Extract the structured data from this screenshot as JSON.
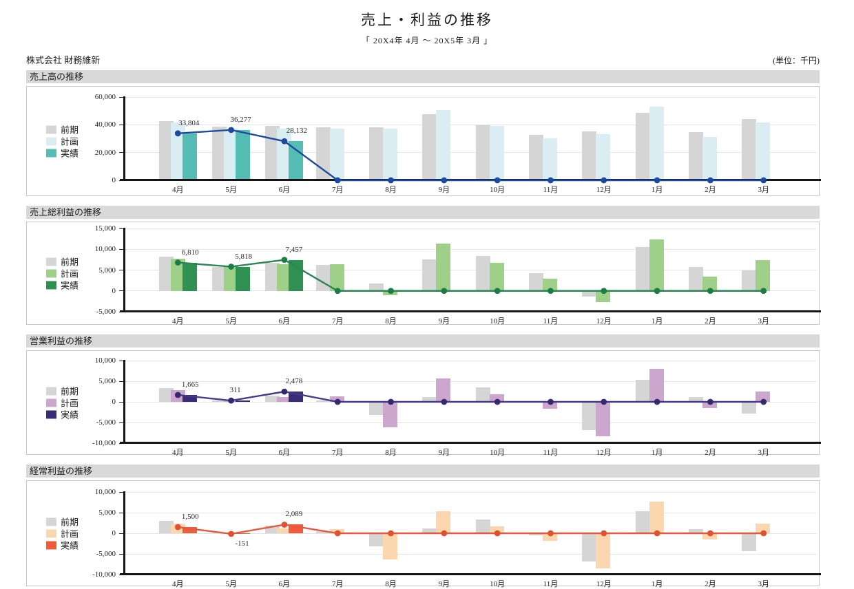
{
  "page": {
    "title": "売上・利益の推移",
    "subtitle": "「 20X4年 4月 ～ 20X5年 3月 」",
    "company": "株式会社 財務維新",
    "unit": "(単位：千円)"
  },
  "months": [
    "4月",
    "5月",
    "6月",
    "7月",
    "8月",
    "9月",
    "10月",
    "11月",
    "12月",
    "1月",
    "2月",
    "3月"
  ],
  "chart_data": [
    {
      "type": "bar+line",
      "title": "売上高の推移",
      "legend": [
        "前期",
        "計画",
        "実績"
      ],
      "colors": {
        "bars": [
          "#d5d5d5",
          "#daedf2",
          "#56bdb4"
        ],
        "line": "#1d4a9e",
        "dot": "#1d4a9e"
      },
      "ylim": [
        0,
        60000
      ],
      "ytick_step": 20000,
      "series": [
        {
          "name": "前期",
          "values": [
            42500,
            38600,
            39100,
            38300,
            38400,
            47800,
            39900,
            32600,
            35400,
            48600,
            34700,
            44200
          ]
        },
        {
          "name": "計画",
          "values": [
            41500,
            37000,
            37400,
            37400,
            37200,
            50800,
            39400,
            30300,
            33400,
            53300,
            31300,
            41500
          ]
        },
        {
          "name": "実績",
          "values": [
            33804,
            36277,
            28132,
            null,
            null,
            null,
            null,
            null,
            null,
            null,
            null,
            null
          ]
        }
      ],
      "line_values": [
        33804,
        36277,
        28132,
        0,
        0,
        0,
        0,
        0,
        0,
        0,
        0,
        0
      ],
      "point_labels": [
        {
          "i": 0,
          "text": "33,804",
          "dx": 16,
          "below": false
        },
        {
          "i": 1,
          "text": "36,277",
          "dx": 14,
          "below": false
        },
        {
          "i": 2,
          "text": "28,132",
          "dx": 18,
          "below": false
        }
      ]
    },
    {
      "type": "bar+line",
      "title": "売上総利益の推移",
      "legend": [
        "前期",
        "計画",
        "実績"
      ],
      "colors": {
        "bars": [
          "#d5d5d5",
          "#9fd089",
          "#2e9152"
        ],
        "line": "#2b8554",
        "dot": "#1e7c47"
      },
      "ylim": [
        -5000,
        15000
      ],
      "ytick_step": 5000,
      "series": [
        {
          "name": "前期",
          "values": [
            8300,
            5800,
            6700,
            6200,
            1700,
            7600,
            8400,
            4300,
            -1350,
            10500,
            5800,
            5000
          ]
        },
        {
          "name": "計画",
          "values": [
            7700,
            6100,
            6400,
            6400,
            -1050,
            11400,
            6800,
            2900,
            -2700,
            12400,
            3400,
            7400
          ]
        },
        {
          "name": "実績",
          "values": [
            6810,
            5818,
            7457,
            null,
            null,
            null,
            null,
            null,
            null,
            null,
            null,
            null
          ]
        }
      ],
      "line_values": [
        6810,
        5818,
        7457,
        0,
        0,
        0,
        0,
        0,
        0,
        0,
        0,
        0
      ],
      "point_labels": [
        {
          "i": 0,
          "text": "6,810",
          "dx": 18,
          "below": false
        },
        {
          "i": 1,
          "text": "5,818",
          "dx": 18,
          "below": false
        },
        {
          "i": 2,
          "text": "7,457",
          "dx": 14,
          "below": false
        }
      ]
    },
    {
      "type": "bar+line",
      "title": "営業利益の推移",
      "legend": [
        "前期",
        "計画",
        "実績"
      ],
      "colors": {
        "bars": [
          "#d5d5d5",
          "#cda6ce",
          "#392b75"
        ],
        "line": "#45398c",
        "dot": "#352a6e"
      },
      "ylim": [
        -10000,
        10000
      ],
      "ytick_step": 5000,
      "series": [
        {
          "name": "前期",
          "values": [
            3300,
            400,
            1550,
            350,
            -3150,
            1250,
            3550,
            -150,
            -6900,
            5400,
            1150,
            -2750
          ]
        },
        {
          "name": "計画",
          "values": [
            2900,
            100,
            1100,
            1260,
            -6200,
            5700,
            1900,
            -1700,
            -8400,
            8000,
            -1500,
            2500
          ]
        },
        {
          "name": "実績",
          "values": [
            1665,
            311,
            2478,
            null,
            null,
            null,
            null,
            null,
            null,
            null,
            null,
            null
          ]
        }
      ],
      "line_values": [
        1665,
        311,
        2478,
        0,
        0,
        0,
        0,
        0,
        0,
        0,
        0,
        0
      ],
      "point_labels": [
        {
          "i": 0,
          "text": "1,665",
          "dx": 18,
          "below": false
        },
        {
          "i": 1,
          "text": "311",
          "dx": 6,
          "below": false
        },
        {
          "i": 2,
          "text": "2,478",
          "dx": 14,
          "below": false
        }
      ]
    },
    {
      "type": "bar+line",
      "title": "経常利益の推移",
      "legend": [
        "前期",
        "計画",
        "実績"
      ],
      "colors": {
        "bars": [
          "#d5d5d5",
          "#fad7ae",
          "#f05b3a"
        ],
        "line": "#e25b41",
        "dot": "#e0512e"
      },
      "ylim": [
        -10000,
        10000
      ],
      "ytick_step": 5000,
      "series": [
        {
          "name": "前期",
          "values": [
            3000,
            200,
            1800,
            450,
            -3100,
            1100,
            3400,
            -500,
            -6900,
            5300,
            1000,
            -4400
          ]
        },
        {
          "name": "計画",
          "values": [
            2400,
            100,
            1150,
            1000,
            -6250,
            5300,
            1600,
            -1900,
            -8500,
            7700,
            -1500,
            2300
          ]
        },
        {
          "name": "実績",
          "values": [
            1500,
            -151,
            2089,
            null,
            null,
            null,
            null,
            null,
            null,
            null,
            null,
            null
          ]
        }
      ],
      "line_values": [
        1500,
        -151,
        2089,
        0,
        0,
        0,
        0,
        0,
        0,
        0,
        0,
        0
      ],
      "point_labels": [
        {
          "i": 0,
          "text": "1,500",
          "dx": 18,
          "below": false
        },
        {
          "i": 1,
          "text": "-151",
          "dx": 16,
          "below": true
        },
        {
          "i": 2,
          "text": "2,089",
          "dx": 14,
          "below": false
        }
      ]
    }
  ]
}
